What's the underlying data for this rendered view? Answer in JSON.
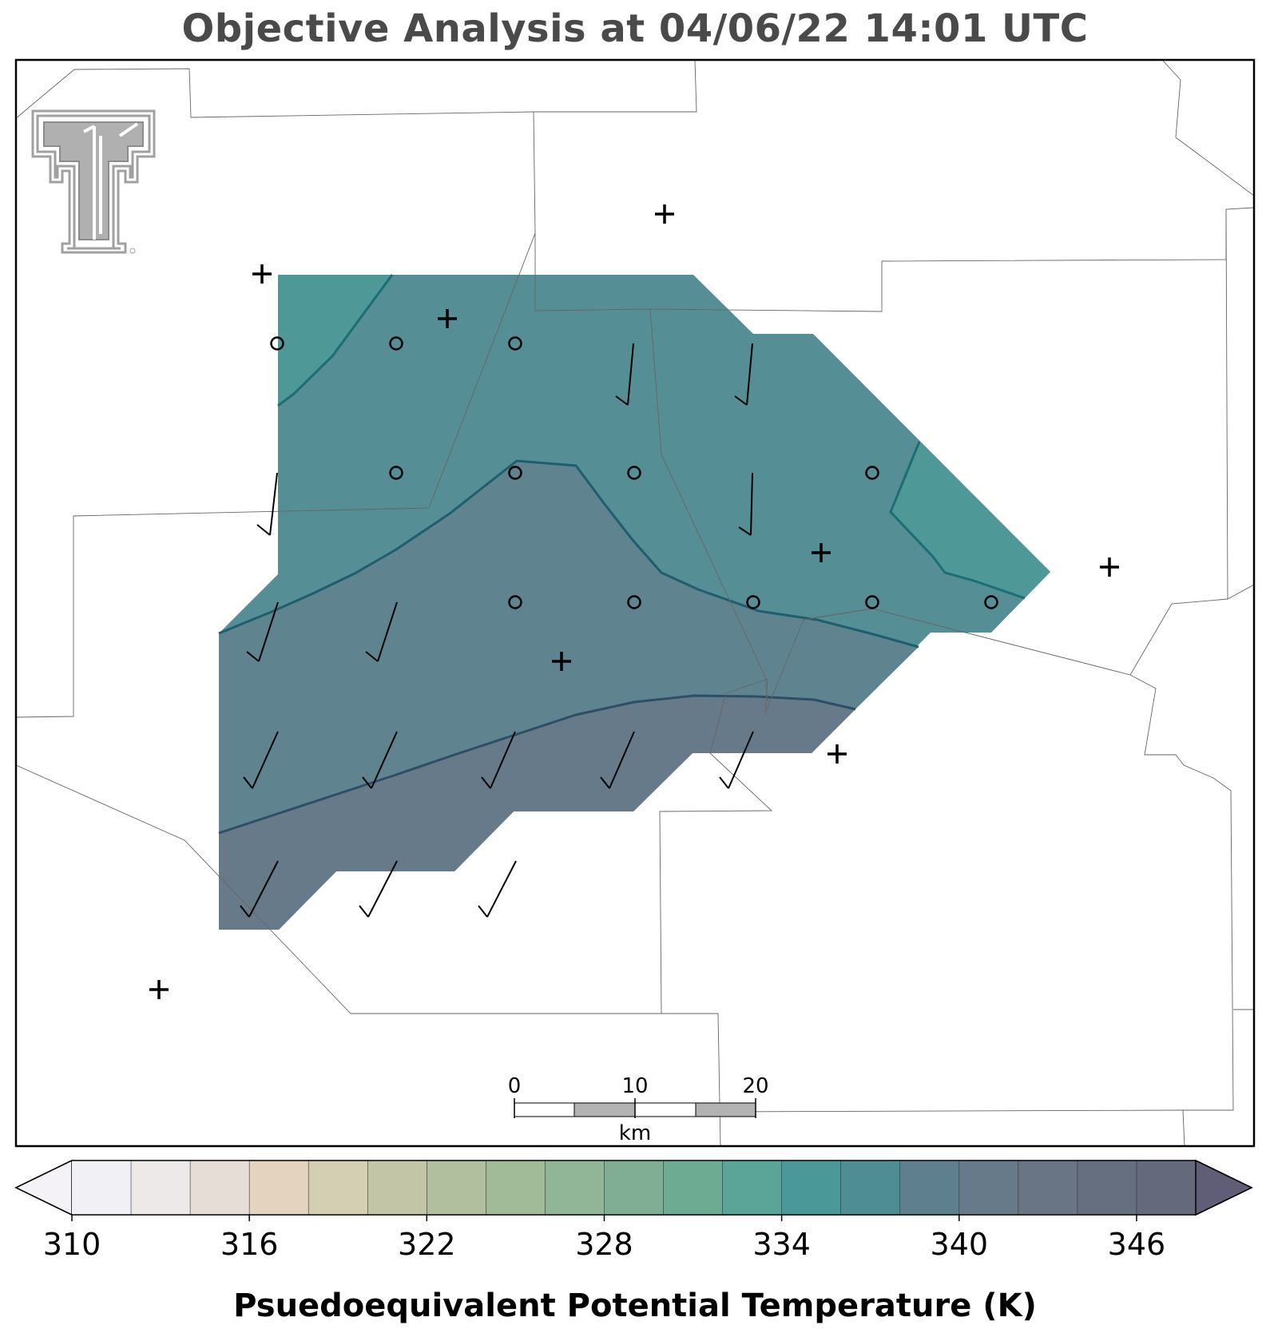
{
  "title": "Objective Analysis at 04/06/22 14:01 UTC",
  "colorbar": {
    "label": "Psuedoequivalent Potential Temperature (K)",
    "ticks": [
      "310",
      "316",
      "322",
      "328",
      "334",
      "340",
      "346"
    ],
    "tick_values": [
      310,
      316,
      322,
      328,
      334,
      340,
      346
    ],
    "range": [
      310,
      350
    ],
    "step": 2,
    "colors": [
      "#f1f0f4",
      "#ede9e8",
      "#e6ddd7",
      "#e3d3bf",
      "#d4cfb2",
      "#c3c6a6",
      "#b2bf9e",
      "#a1ba98",
      "#91b597",
      "#80ae94",
      "#6dab92",
      "#5aa597",
      "#4a9898",
      "#4d8d93",
      "#5e7f8e",
      "#677a89",
      "#697585",
      "#666f80",
      "#646a7c"
    ],
    "under_color": "#f4f2f7",
    "over_color": "#5f5e76"
  },
  "scale_bar": {
    "unit": "km",
    "labels": [
      "0",
      "10",
      "20"
    ]
  },
  "logo": {
    "name": "Texas Tech Double T"
  },
  "colors": {
    "fill_334_336": "#4e9898",
    "fill_336_338": "#558e95",
    "fill_338_340": "#5f848f",
    "fill_340_342": "#677a89",
    "contour_line": "#1e5a6a",
    "boundary": "#555555"
  },
  "map": {
    "symbols": {
      "calm_wind_circle": "circle-icon",
      "wind_barb": "wind-barb-icon",
      "station": "station-cross-icon"
    }
  }
}
